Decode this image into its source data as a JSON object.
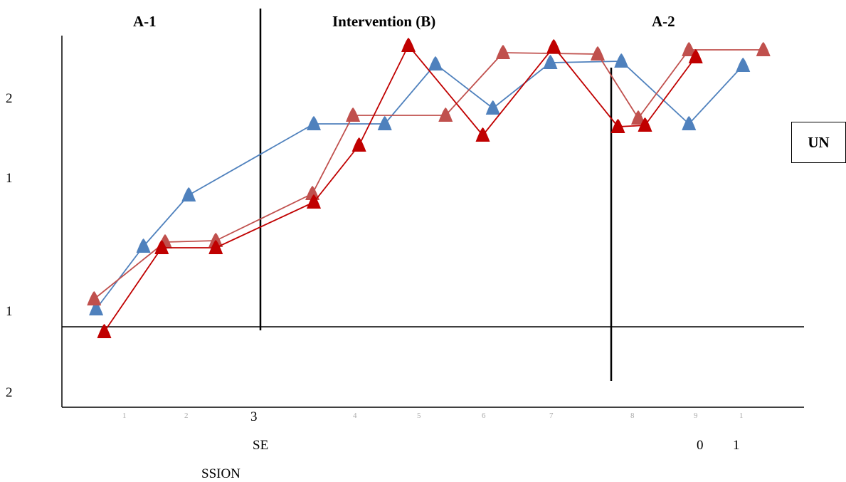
{
  "chart_data": {
    "type": "line",
    "phase_labels": [
      "A-1",
      "Intervention (B)",
      "A-2"
    ],
    "y_tick_labels": [
      "2",
      "1",
      "1",
      "2"
    ],
    "x_tick_labels": [
      "1",
      "2",
      "3",
      "4",
      "5",
      "6",
      "7",
      "8",
      "9",
      "1",
      "SE",
      "0",
      "1",
      "SSION"
    ],
    "legend_label": "UN",
    "colors": {
      "blue": "#4f81bd",
      "rose": "#c0504d",
      "red": "#c00000",
      "axis": "#000000"
    },
    "series": [
      {
        "color_key": "blue",
        "points": [
          [
            1.18,
            1.28
          ],
          [
            1.88,
            1.72
          ],
          [
            2.55,
            2.08
          ],
          [
            4.4,
            2.58
          ],
          [
            5.45,
            2.58
          ],
          [
            6.2,
            3.0
          ],
          [
            7.05,
            2.69
          ],
          [
            7.9,
            3.01
          ],
          [
            8.95,
            3.02
          ],
          [
            9.95,
            2.58
          ],
          [
            10.75,
            2.99
          ]
        ]
      },
      {
        "color_key": "rose",
        "points": [
          [
            1.15,
            1.35
          ],
          [
            2.2,
            1.75
          ],
          [
            2.95,
            1.76
          ],
          [
            4.38,
            2.09
          ],
          [
            4.98,
            2.64
          ],
          [
            6.35,
            2.64
          ],
          [
            7.2,
            3.08
          ],
          [
            8.6,
            3.07
          ],
          [
            9.2,
            2.62
          ],
          [
            9.95,
            3.1
          ],
          [
            11.05,
            3.1
          ]
        ]
      },
      {
        "color_key": "red",
        "points": [
          [
            1.3,
            1.12
          ],
          [
            2.15,
            1.71
          ],
          [
            2.95,
            1.71
          ],
          [
            4.4,
            2.03
          ],
          [
            5.07,
            2.43
          ],
          [
            5.8,
            3.13
          ],
          [
            6.9,
            2.5
          ],
          [
            7.95,
            3.12
          ],
          [
            8.9,
            2.56
          ],
          [
            9.3,
            2.57
          ],
          [
            10.05,
            3.05
          ]
        ]
      }
    ]
  }
}
